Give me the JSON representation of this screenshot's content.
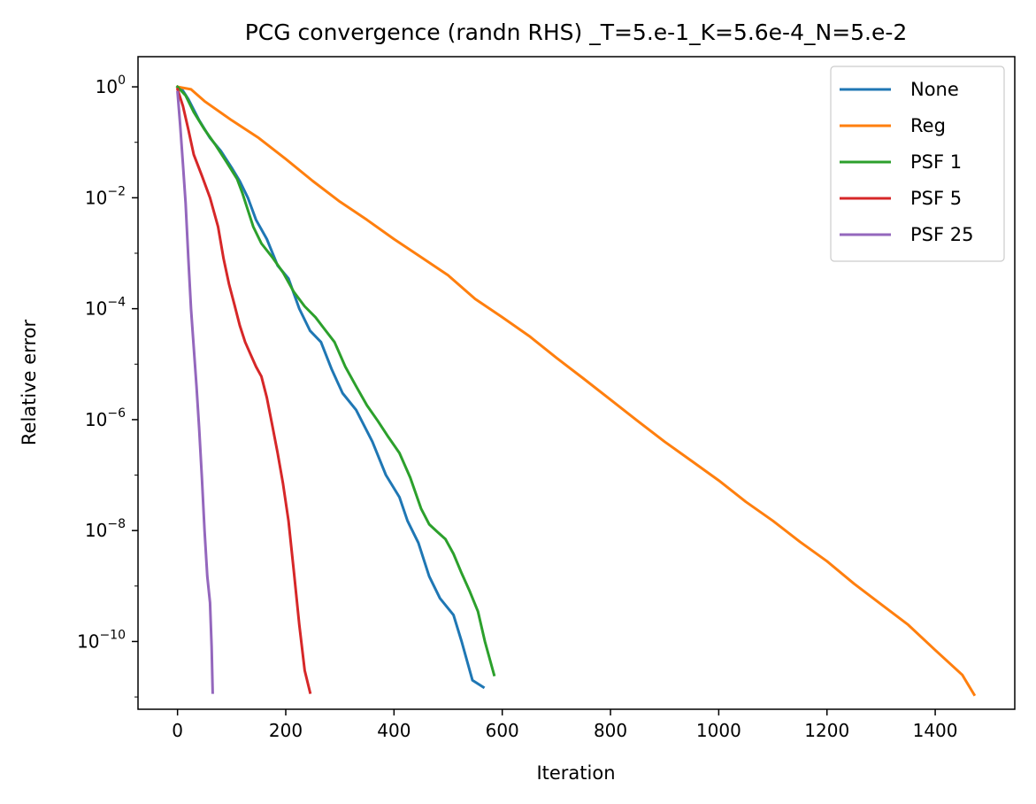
{
  "chart_data": {
    "type": "line",
    "title": "PCG convergence (randn RHS) _T=5.e-1_K=5.6e-4_N=5.e-2",
    "xlabel": "Iteration",
    "ylabel": "Relative error",
    "xscale": "linear",
    "yscale": "log",
    "xlim": [
      -73,
      1547
    ],
    "ylim": [
      6e-12,
      3.5
    ],
    "x_ticks": [
      0,
      200,
      400,
      600,
      800,
      1000,
      1200,
      1400
    ],
    "x_tick_labels": [
      "0",
      "200",
      "400",
      "600",
      "800",
      "1000",
      "1200",
      "1400"
    ],
    "y_ticks": [
      1,
      0.01,
      0.0001,
      1e-06,
      1e-08,
      1e-10
    ],
    "y_tick_labels": [
      {
        "base": "10",
        "exp": "0"
      },
      {
        "base": "10",
        "exp": "−2"
      },
      {
        "base": "10",
        "exp": "−4"
      },
      {
        "base": "10",
        "exp": "−6"
      },
      {
        "base": "10",
        "exp": "−8"
      },
      {
        "base": "10",
        "exp": "−10"
      }
    ],
    "grid": false,
    "legend_position": "top-right",
    "series": [
      {
        "name": "None",
        "color": "#1f77b4",
        "points": [
          [
            0,
            1.0
          ],
          [
            10,
            0.85
          ],
          [
            20,
            0.6
          ],
          [
            40,
            0.25
          ],
          [
            60,
            0.12
          ],
          [
            80,
            0.07
          ],
          [
            100,
            0.035
          ],
          [
            115,
            0.02
          ],
          [
            130,
            0.01
          ],
          [
            145,
            0.004
          ],
          [
            165,
            0.0018
          ],
          [
            185,
            0.0006
          ],
          [
            205,
            0.00035
          ],
          [
            225,
            0.0001
          ],
          [
            245,
            4e-05
          ],
          [
            265,
            2.5e-05
          ],
          [
            285,
            8e-06
          ],
          [
            305,
            3e-06
          ],
          [
            330,
            1.5e-06
          ],
          [
            360,
            4e-07
          ],
          [
            385,
            1e-07
          ],
          [
            410,
            4e-08
          ],
          [
            425,
            1.5e-08
          ],
          [
            445,
            6e-09
          ],
          [
            465,
            1.5e-09
          ],
          [
            485,
            6e-10
          ],
          [
            510,
            3e-10
          ],
          [
            525,
            1e-10
          ],
          [
            545,
            2e-11
          ],
          [
            565,
            1.5e-11
          ]
        ]
      },
      {
        "name": "Reg",
        "color": "#ff7f0e",
        "points": [
          [
            0,
            1.0
          ],
          [
            25,
            0.9
          ],
          [
            50,
            0.55
          ],
          [
            100,
            0.25
          ],
          [
            150,
            0.12
          ],
          [
            200,
            0.05
          ],
          [
            250,
            0.02
          ],
          [
            300,
            0.0085
          ],
          [
            350,
            0.004
          ],
          [
            400,
            0.0018
          ],
          [
            450,
            0.00085
          ],
          [
            500,
            0.0004
          ],
          [
            550,
            0.00015
          ],
          [
            600,
            7e-05
          ],
          [
            650,
            3.2e-05
          ],
          [
            700,
            1.3e-05
          ],
          [
            750,
            5.5e-06
          ],
          [
            800,
            2.3e-06
          ],
          [
            850,
            9.5e-07
          ],
          [
            900,
            4e-07
          ],
          [
            950,
            1.8e-07
          ],
          [
            1000,
            8e-08
          ],
          [
            1050,
            3.3e-08
          ],
          [
            1100,
            1.5e-08
          ],
          [
            1150,
            6.3e-09
          ],
          [
            1200,
            2.8e-09
          ],
          [
            1250,
            1.1e-09
          ],
          [
            1300,
            4.7e-10
          ],
          [
            1350,
            2e-10
          ],
          [
            1400,
            7e-11
          ],
          [
            1450,
            2.5e-11
          ],
          [
            1472,
            1.1e-11
          ]
        ]
      },
      {
        "name": "PSF 1",
        "color": "#2ca02c",
        "points": [
          [
            0,
            1.0
          ],
          [
            15,
            0.7
          ],
          [
            30,
            0.35
          ],
          [
            50,
            0.17
          ],
          [
            70,
            0.09
          ],
          [
            90,
            0.045
          ],
          [
            110,
            0.022
          ],
          [
            120,
            0.012
          ],
          [
            130,
            0.006
          ],
          [
            140,
            0.003
          ],
          [
            155,
            0.0015
          ],
          [
            175,
            0.00085
          ],
          [
            195,
            0.00045
          ],
          [
            215,
            0.0002
          ],
          [
            235,
            0.00011
          ],
          [
            255,
            7e-05
          ],
          [
            270,
            4.5e-05
          ],
          [
            290,
            2.5e-05
          ],
          [
            310,
            9e-06
          ],
          [
            330,
            4e-06
          ],
          [
            350,
            1.8e-06
          ],
          [
            370,
            9.5e-07
          ],
          [
            390,
            4.8e-07
          ],
          [
            410,
            2.5e-07
          ],
          [
            430,
            9e-08
          ],
          [
            450,
            2.5e-08
          ],
          [
            465,
            1.3e-08
          ],
          [
            480,
            9.5e-09
          ],
          [
            495,
            7e-09
          ],
          [
            510,
            3.8e-09
          ],
          [
            525,
            1.7e-09
          ],
          [
            540,
            8e-10
          ],
          [
            555,
            3.5e-10
          ],
          [
            568,
            1e-10
          ],
          [
            585,
            2.5e-11
          ]
        ]
      },
      {
        "name": "PSF 5",
        "color": "#d62728",
        "points": [
          [
            0,
            0.9
          ],
          [
            10,
            0.45
          ],
          [
            20,
            0.17
          ],
          [
            30,
            0.06
          ],
          [
            45,
            0.025
          ],
          [
            60,
            0.01
          ],
          [
            75,
            0.003
          ],
          [
            85,
            0.0008
          ],
          [
            95,
            0.00028
          ],
          [
            105,
            0.00012
          ],
          [
            115,
            5e-05
          ],
          [
            125,
            2.5e-05
          ],
          [
            135,
            1.5e-05
          ],
          [
            145,
            9e-06
          ],
          [
            155,
            6e-06
          ],
          [
            165,
            2.5e-06
          ],
          [
            175,
            8e-07
          ],
          [
            185,
            2.5e-07
          ],
          [
            195,
            7e-08
          ],
          [
            205,
            1.5e-08
          ],
          [
            215,
            1.8e-09
          ],
          [
            225,
            2e-10
          ],
          [
            235,
            3e-11
          ],
          [
            245,
            1.2e-11
          ]
        ]
      },
      {
        "name": "PSF 25",
        "color": "#9467bd",
        "points": [
          [
            0,
            0.8
          ],
          [
            5,
            0.2
          ],
          [
            10,
            0.04
          ],
          [
            15,
            0.008
          ],
          [
            20,
            0.0008
          ],
          [
            25,
            0.0001
          ],
          [
            30,
            2e-05
          ],
          [
            35,
            4e-06
          ],
          [
            40,
            7e-07
          ],
          [
            45,
            9e-08
          ],
          [
            50,
            1e-08
          ],
          [
            55,
            1.5e-09
          ],
          [
            60,
            5e-10
          ],
          [
            63,
            8e-11
          ],
          [
            65,
            1.2e-11
          ]
        ]
      }
    ]
  }
}
